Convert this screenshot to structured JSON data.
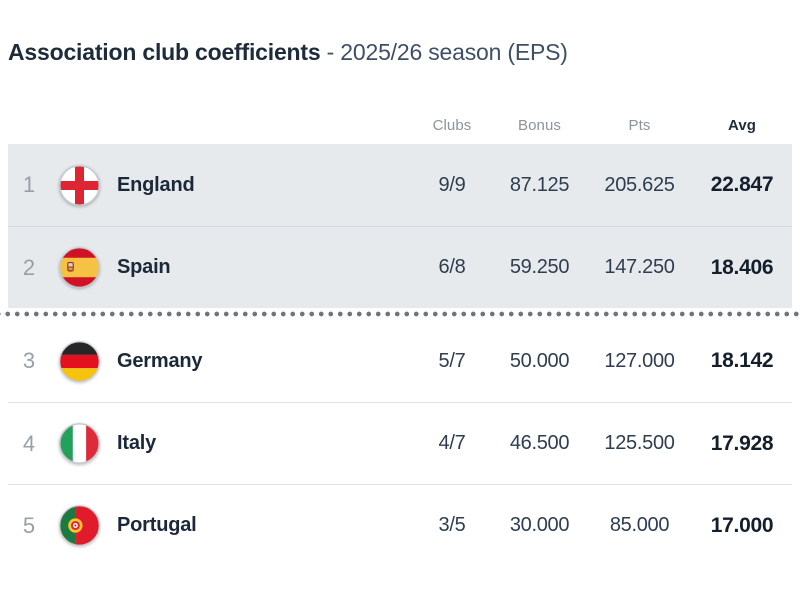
{
  "title": {
    "main": "Association club coefficients",
    "sub": "- 2025/26 season (EPS)"
  },
  "table": {
    "headers": {
      "clubs": "Clubs",
      "bonus": "Bonus",
      "pts": "Pts",
      "avg": "Avg"
    },
    "cutoff_after_rank": "2",
    "rows": [
      {
        "rank": "1",
        "country": "England",
        "flag": "england-flag",
        "clubs": "9/9",
        "bonus": "87.125",
        "pts": "205.625",
        "avg": "22.847",
        "highlighted": true
      },
      {
        "rank": "2",
        "country": "Spain",
        "flag": "spain-flag",
        "clubs": "6/8",
        "bonus": "59.250",
        "pts": "147.250",
        "avg": "18.406",
        "highlighted": true
      },
      {
        "rank": "3",
        "country": "Germany",
        "flag": "germany-flag",
        "clubs": "5/7",
        "bonus": "50.000",
        "pts": "127.000",
        "avg": "18.142",
        "highlighted": false
      },
      {
        "rank": "4",
        "country": "Italy",
        "flag": "italy-flag",
        "clubs": "4/7",
        "bonus": "46.500",
        "pts": "125.500",
        "avg": "17.928",
        "highlighted": false
      },
      {
        "rank": "5",
        "country": "Portugal",
        "flag": "portugal-flag",
        "clubs": "3/5",
        "bonus": "30.000",
        "pts": "85.000",
        "avg": "17.000",
        "highlighted": false
      }
    ]
  },
  "colors": {
    "highlight_row_bg": "#e7eaed",
    "cutoff_dots": "#6d757e",
    "title_main": "#1d2b3a",
    "title_sub": "#3e5065"
  }
}
